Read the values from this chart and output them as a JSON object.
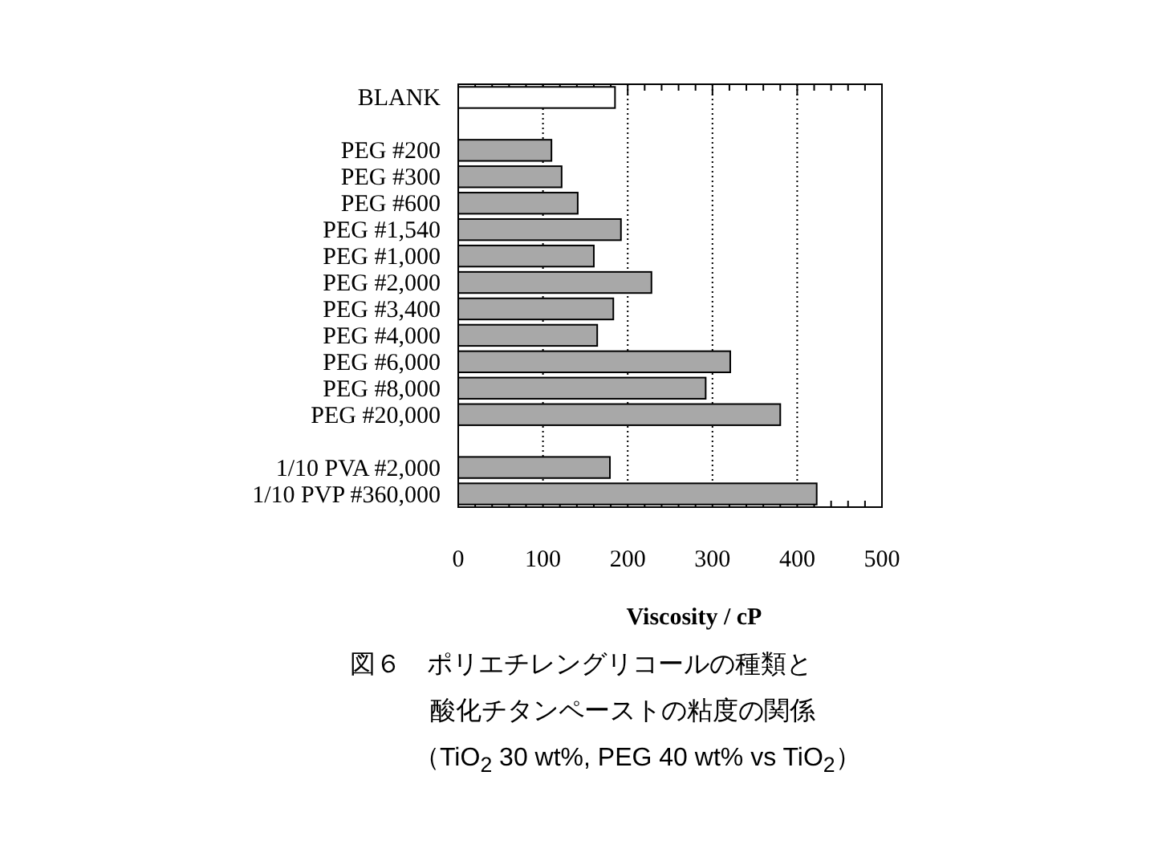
{
  "chart_data": {
    "type": "bar",
    "orientation": "horizontal",
    "categories": [
      "BLANK",
      null,
      "PEG #200",
      "PEG #300",
      "PEG #600",
      "PEG #1,540",
      "PEG #1,000",
      "PEG #2,000",
      "PEG #3,400",
      "PEG #4,000",
      "PEG #6,000",
      "PEG #8,000",
      "PEG #20,000",
      null,
      "1/10 PVA #2,000",
      "1/10 PVP #360,000"
    ],
    "values": [
      185,
      null,
      110,
      122,
      141,
      192,
      160,
      228,
      183,
      164,
      321,
      292,
      380,
      null,
      179,
      423
    ],
    "colors": [
      "#ffffff",
      null,
      "#a8a8a8",
      "#a8a8a8",
      "#a8a8a8",
      "#a8a8a8",
      "#a8a8a8",
      "#a8a8a8",
      "#a8a8a8",
      "#a8a8a8",
      "#a8a8a8",
      "#a8a8a8",
      "#a8a8a8",
      null,
      "#a8a8a8",
      "#a8a8a8"
    ],
    "xlabel": "Viscosity / cP",
    "xlim": [
      0,
      500
    ],
    "xticks": [
      0,
      {
        "value": 20,
        "label": null
      },
      {
        "value": 40,
        "label": null
      },
      {
        "value": 60,
        "label": null
      },
      {
        "value": 80,
        "label": null
      },
      100,
      {
        "value": 120,
        "label": null
      },
      {
        "value": 140,
        "label": null
      },
      {
        "value": 160,
        "label": null
      },
      {
        "value": 180,
        "label": null
      },
      200,
      {
        "value": 220,
        "label": null
      },
      {
        "value": 240,
        "label": null
      },
      {
        "value": 260,
        "label": null
      },
      {
        "value": 280,
        "label": null
      },
      300,
      {
        "value": 320,
        "label": null
      },
      {
        "value": 340,
        "label": null
      },
      {
        "value": 360,
        "label": null
      },
      {
        "value": 380,
        "label": null
      },
      400,
      {
        "value": 420,
        "label": null
      },
      {
        "value": 440,
        "label": null
      },
      {
        "value": 460,
        "label": null
      },
      {
        "value": 480,
        "label": null
      },
      500
    ],
    "grid": "x",
    "annotations": [
      "図６　ポリエチレングリコールの種類と",
      "酸化チタンペーストの粘度の関係",
      "（TiO$_{2}$ 30 wt%, PEG 40 wt% vs TiO$_{2}$）"
    ]
  }
}
